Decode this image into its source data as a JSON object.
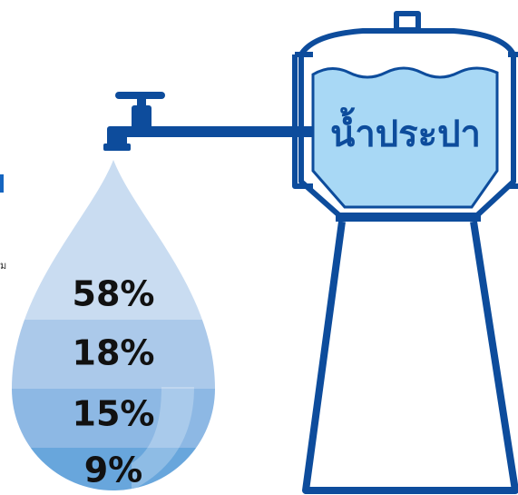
{
  "tank_label": "น้ำประปา",
  "drop_segments": [
    "58%",
    "18%",
    "15%",
    "9%"
  ],
  "side_fragment": "ม"
}
